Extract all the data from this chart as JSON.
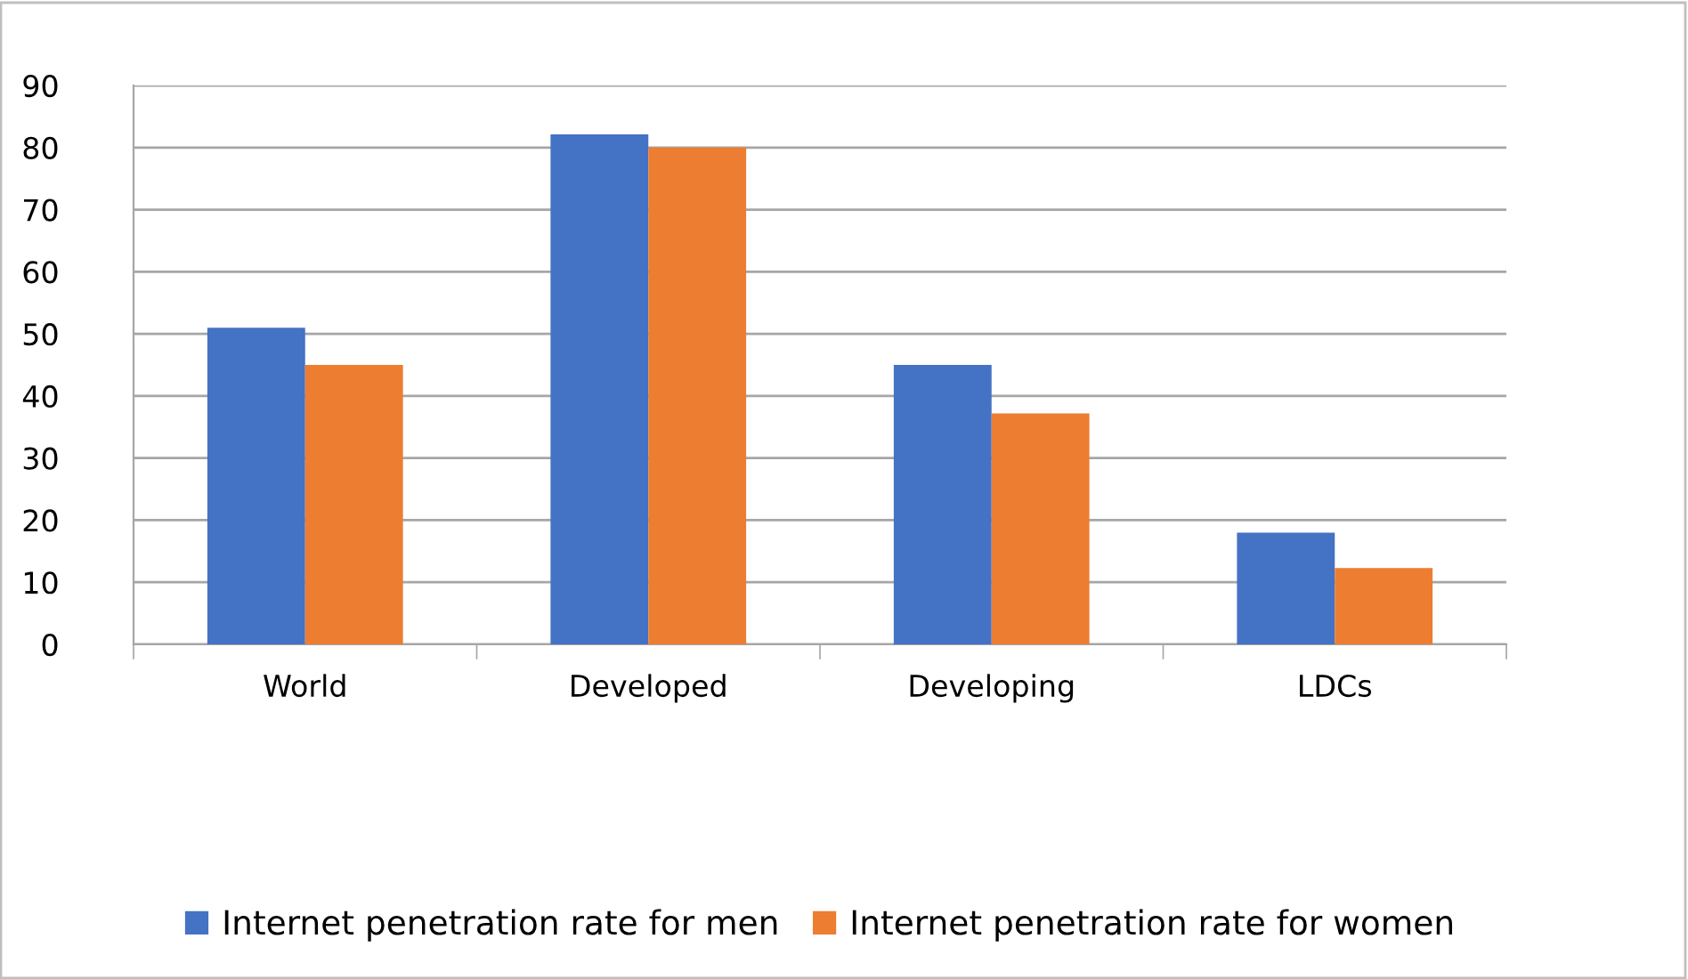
{
  "chart_data": {
    "type": "bar",
    "categories": [
      "World",
      "Developed",
      "Developing",
      "LDCs"
    ],
    "series": [
      {
        "name": "Internet penetration rate for men",
        "color": "#4472c4",
        "values": [
          51,
          82.1,
          45,
          18
        ]
      },
      {
        "name": "Internet penetration rate for women",
        "color": "#ed7d31",
        "values": [
          45,
          80,
          37.2,
          12.3
        ]
      }
    ],
    "ylim": [
      0,
      90
    ],
    "yticks": [
      0,
      10,
      20,
      30,
      40,
      50,
      60,
      70,
      80,
      90
    ],
    "grid": "y",
    "legend": "bottom"
  }
}
